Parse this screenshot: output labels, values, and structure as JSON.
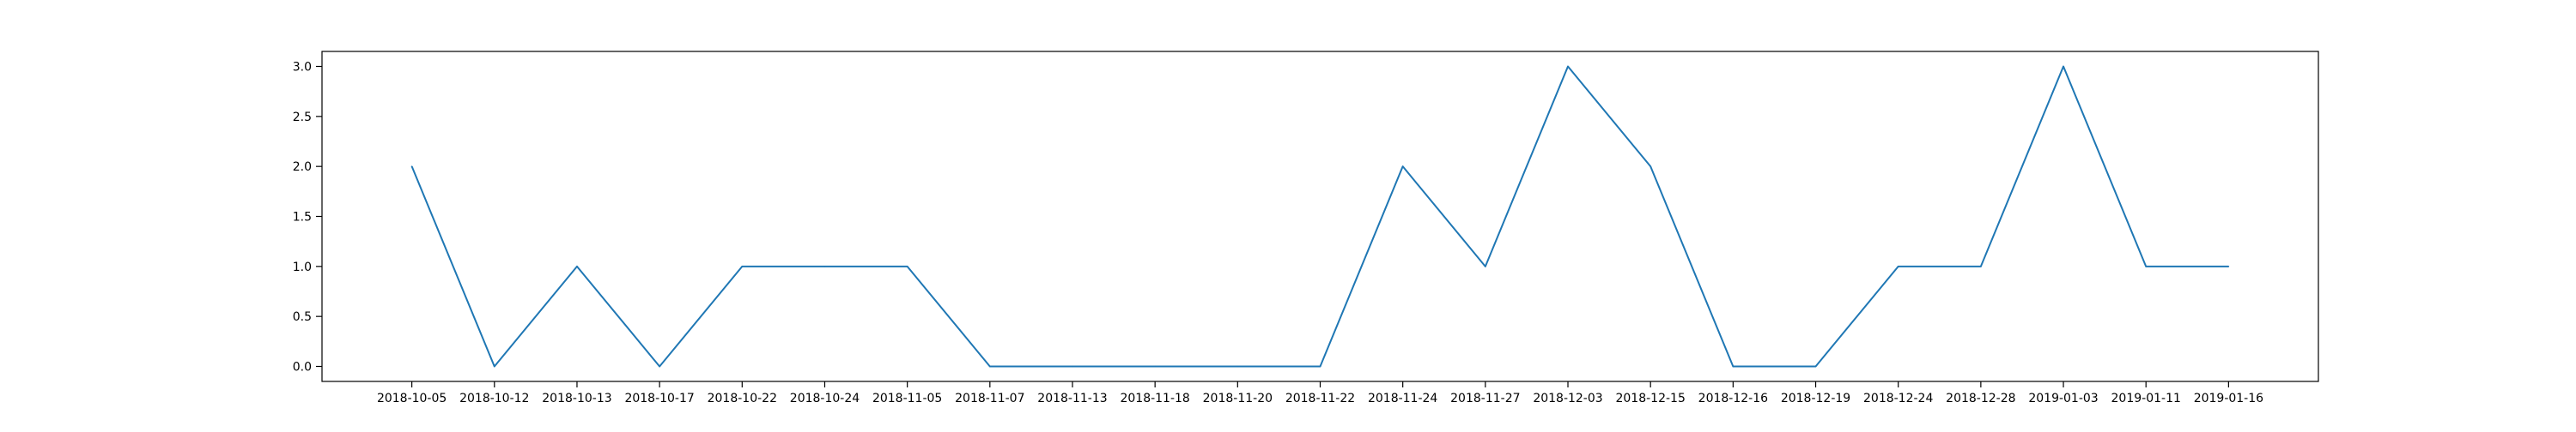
{
  "chart_data": {
    "type": "line",
    "title": "",
    "xlabel": "",
    "ylabel": "",
    "categories": [
      "2018-10-05",
      "2018-10-12",
      "2018-10-13",
      "2018-10-17",
      "2018-10-22",
      "2018-10-24",
      "2018-11-05",
      "2018-11-07",
      "2018-11-13",
      "2018-11-18",
      "2018-11-20",
      "2018-11-22",
      "2018-11-24",
      "2018-11-27",
      "2018-12-03",
      "2018-12-15",
      "2018-12-16",
      "2018-12-19",
      "2018-12-24",
      "2018-12-28",
      "2019-01-03",
      "2019-01-11",
      "2019-01-16"
    ],
    "series": [
      {
        "values": [
          2,
          0,
          1,
          0,
          1,
          1,
          1,
          0,
          0,
          0,
          0,
          0,
          2,
          1,
          3,
          2,
          0,
          0,
          1,
          1,
          3,
          1,
          1
        ],
        "color": "#1f77b4"
      }
    ],
    "ylim": [
      -0.15,
      3.15
    ],
    "yticks": [
      "0.0",
      "0.5",
      "1.0",
      "1.5",
      "2.0",
      "2.5",
      "3.0"
    ],
    "grid": false,
    "legend": "none"
  }
}
